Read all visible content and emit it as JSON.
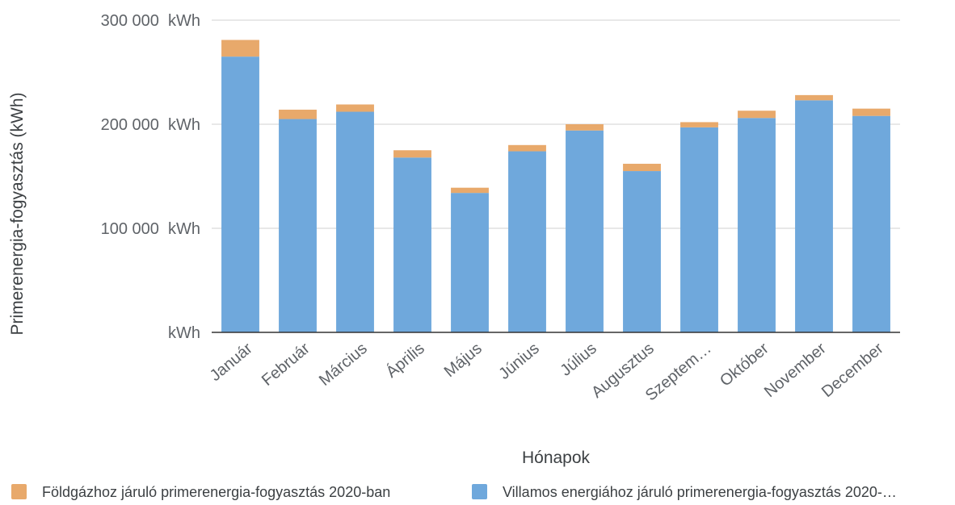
{
  "chart_data": {
    "type": "bar",
    "stacked": true,
    "title": "",
    "xlabel": "Hónapok",
    "ylabel": "Primerenergia-fogyasztás (kWh)",
    "ylim": [
      0,
      300000
    ],
    "yticks": [
      0,
      100000,
      200000,
      300000
    ],
    "ytick_labels": [
      "kWh",
      "100 000  kWh",
      "200 000  kWh",
      "300 000  kWh"
    ],
    "grid": true,
    "legend_position": "bottom",
    "categories": [
      "Január",
      "Február",
      "Március",
      "Április",
      "Május",
      "Június",
      "Július",
      "Augusztus",
      "Szeptem…",
      "Október",
      "November",
      "December"
    ],
    "series": [
      {
        "name": "Villamos energiához járuló primerenergia-fogyasztás 2020-…",
        "color": "#6fa8dc",
        "values": [
          265000,
          205000,
          212000,
          168000,
          134000,
          174000,
          194000,
          155000,
          197000,
          206000,
          223000,
          208000
        ]
      },
      {
        "name": "Földgázhoz járuló primerenergia-fogyasztás 2020-ban",
        "color": "#e8a96b",
        "values": [
          16000,
          9000,
          7000,
          7000,
          5000,
          6000,
          6000,
          7000,
          5000,
          7000,
          5000,
          7000
        ]
      }
    ],
    "legend": [
      {
        "label": "Földgázhoz járuló primerenergia-fogyasztás 2020-ban",
        "color": "#e8a96b"
      },
      {
        "label": "Villamos energiához járuló primerenergia-fogyasztás 2020-…",
        "color": "#6fa8dc"
      }
    ]
  }
}
